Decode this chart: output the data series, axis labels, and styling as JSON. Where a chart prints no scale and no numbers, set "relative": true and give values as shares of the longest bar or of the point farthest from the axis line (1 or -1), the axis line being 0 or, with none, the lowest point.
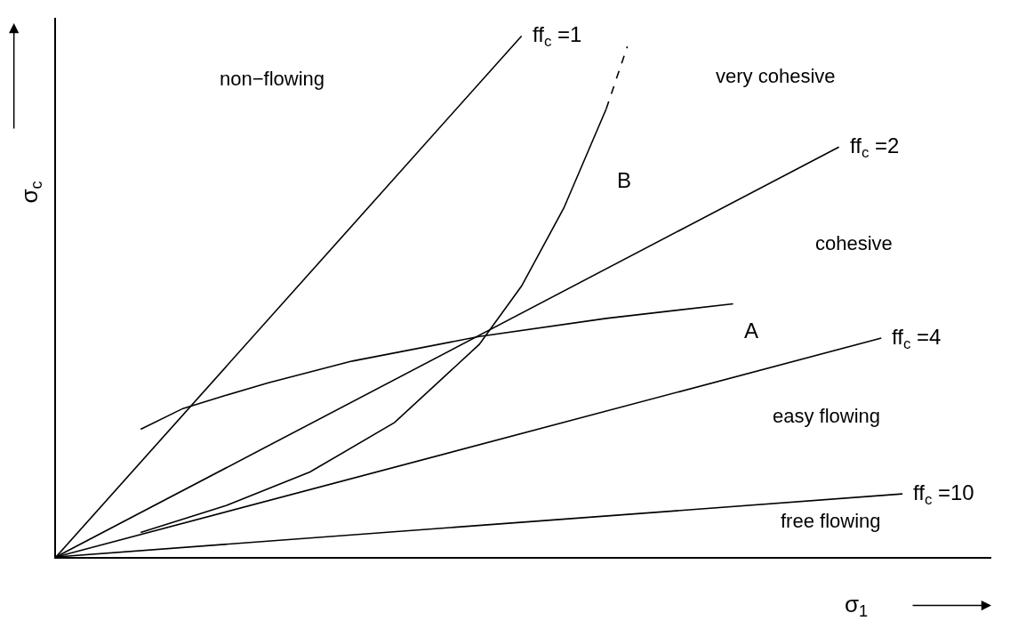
{
  "chart_data": {
    "type": "line",
    "relative": true,
    "xlabel": "σ$_{1}$",
    "ylabel": "σ$_{c}$",
    "legend": false,
    "marker": "none",
    "line_style": "solid",
    "categories": [
      null,
      null,
      null,
      null,
      null,
      null,
      null,
      null,
      null,
      null,
      null,
      null,
      null,
      null,
      null,
      null,
      null,
      null,
      null,
      null,
      null,
      null,
      null,
      null,
      null,
      null,
      null,
      null,
      null,
      null,
      null,
      null,
      null,
      null,
      null,
      null,
      null,
      null,
      null,
      null,
      null
    ],
    "series": [
      {
        "name": "ff$_{c}$ =1",
        "color": "#000000",
        "values": [
          0,
          null,
          null,
          null,
          null,
          null,
          null,
          null,
          null,
          null,
          null,
          null,
          null,
          null,
          null,
          null,
          null,
          null,
          null,
          null,
          null,
          null,
          1,
          null,
          null,
          null,
          null,
          null,
          null,
          null,
          null,
          null,
          null,
          null,
          null,
          null,
          null,
          null,
          null,
          null,
          null
        ]
      },
      {
        "name": "ff$_{c}$ =2",
        "color": "#000000",
        "values": [
          0,
          null,
          null,
          null,
          null,
          null,
          null,
          null,
          null,
          null,
          null,
          null,
          null,
          null,
          null,
          null,
          null,
          null,
          null,
          null,
          null,
          null,
          null,
          null,
          null,
          null,
          null,
          null,
          null,
          null,
          null,
          null,
          null,
          null,
          null,
          null,
          null,
          0.787,
          null,
          null,
          null
        ]
      },
      {
        "name": "ff$_{c}$ =4",
        "color": "#000000",
        "values": [
          0,
          null,
          null,
          null,
          null,
          null,
          null,
          null,
          null,
          null,
          null,
          null,
          null,
          null,
          null,
          null,
          null,
          null,
          null,
          null,
          null,
          null,
          null,
          null,
          null,
          null,
          null,
          null,
          null,
          null,
          null,
          null,
          null,
          null,
          null,
          null,
          null,
          null,
          null,
          0.42,
          null
        ]
      },
      {
        "name": "ff$_{c}$ =10",
        "color": "#000000",
        "values": [
          0,
          null,
          null,
          null,
          null,
          null,
          null,
          null,
          null,
          null,
          null,
          null,
          null,
          null,
          null,
          null,
          null,
          null,
          null,
          null,
          null,
          null,
          null,
          null,
          null,
          null,
          null,
          null,
          null,
          null,
          null,
          null,
          null,
          null,
          null,
          null,
          null,
          null,
          null,
          null,
          0.121
        ]
      },
      {
        "name": "A",
        "color": "#000000",
        "values": [
          null,
          null,
          null,
          null,
          0.245,
          null,
          0.285,
          null,
          0.31,
          null,
          0.334,
          null,
          null,
          null,
          0.376,
          null,
          null,
          null,
          null,
          null,
          0.423,
          null,
          null,
          null,
          null,
          null,
          0.458,
          null,
          null,
          null,
          null,
          null,
          0.486,
          null,
          null,
          null,
          null,
          null,
          null,
          null,
          null
        ]
      },
      {
        "name": "B",
        "color": "#000000",
        "values": [
          null,
          null,
          null,
          null,
          0.047,
          null,
          null,
          null,
          0.098,
          null,
          null,
          null,
          0.163,
          null,
          null,
          null,
          0.258,
          null,
          null,
          null,
          0.408,
          null,
          0.52,
          null,
          0.67,
          null,
          0.86,
          null,
          null,
          null,
          null,
          null,
          null,
          null,
          null,
          null,
          null,
          null,
          null,
          null,
          null
        ]
      },
      {
        "color": "#000000",
        "line_style": "dashed",
        "values": [
          null,
          null,
          null,
          null,
          null,
          null,
          null,
          null,
          null,
          null,
          null,
          null,
          null,
          null,
          null,
          null,
          null,
          null,
          null,
          null,
          null,
          null,
          null,
          null,
          null,
          null,
          0.86,
          0.98,
          null,
          null,
          null,
          null,
          null,
          null,
          null,
          null,
          null,
          null,
          null,
          null,
          null
        ]
      }
    ],
    "annotations": [
      "non−flowing",
      "very cohesive",
      "cohesive",
      "easy flowing",
      "free flowing"
    ]
  }
}
